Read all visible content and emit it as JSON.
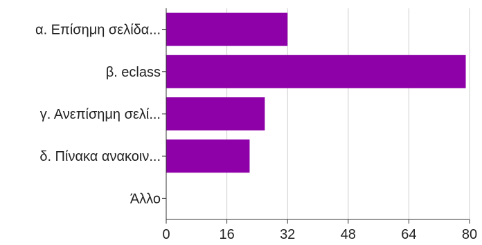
{
  "chart_data": {
    "type": "bar",
    "orientation": "horizontal",
    "categories": [
      "α. Επίσημη σελίδα...",
      "β. eclass",
      "γ. Ανεπίσημη σελί...",
      "δ. Πίνακα ανακοιν...",
      "Άλλο"
    ],
    "values": [
      32,
      79,
      26,
      22,
      0
    ],
    "x_ticks": [
      "0",
      "16",
      "32",
      "48",
      "64",
      "80"
    ],
    "xlim": [
      0,
      80
    ],
    "title": "",
    "xlabel": "",
    "ylabel": "",
    "grid": true,
    "bar_color": "#8e00a8",
    "grid_color": "#cccccc"
  }
}
